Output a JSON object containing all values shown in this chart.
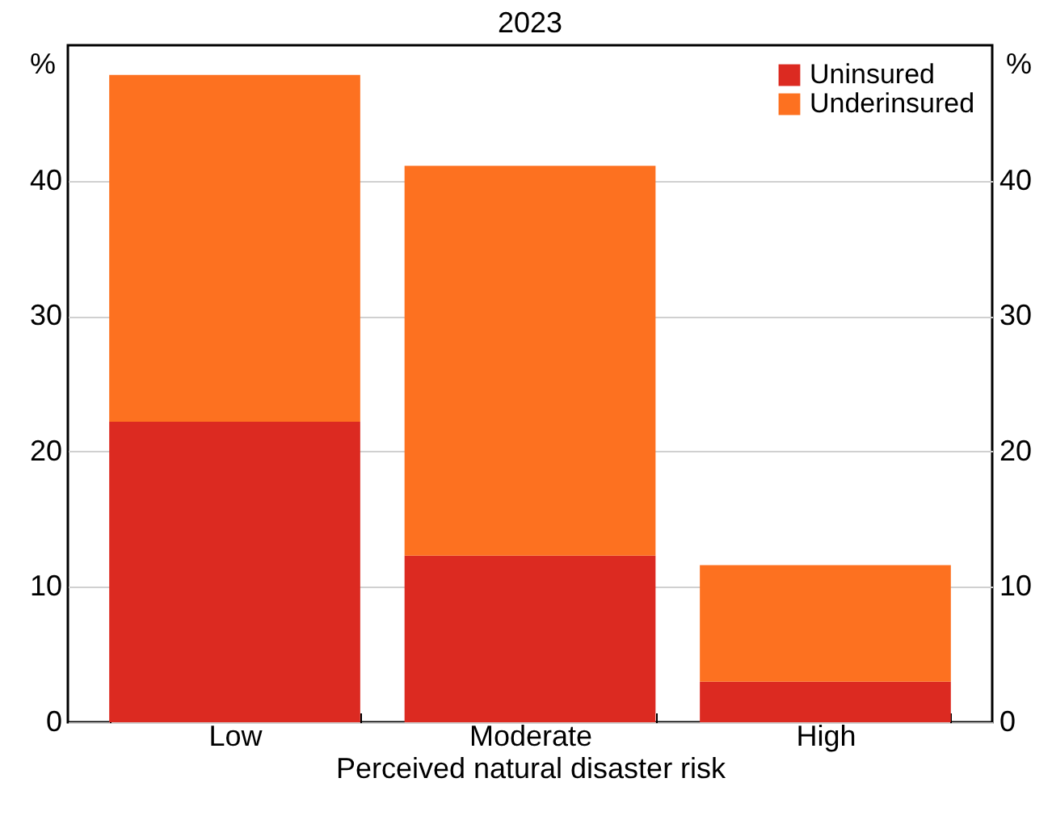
{
  "chart_data": {
    "type": "bar",
    "subtitle": "2023",
    "xlabel": "Perceived natural disaster risk",
    "ylabel": "%",
    "y2label": "%",
    "categories": [
      "Low",
      "Moderate",
      "High"
    ],
    "stacked": true,
    "series": [
      {
        "name": "Uninsured",
        "color": "#dc2a21",
        "values": [
          22.2,
          12.3,
          3.0
        ]
      },
      {
        "name": "Underinsured",
        "color": "#fd7120",
        "values": [
          25.6,
          28.8,
          8.6
        ]
      }
    ],
    "ylim": [
      0,
      50
    ],
    "yticks": [
      0,
      10,
      20,
      30,
      40
    ],
    "y2lim": [
      0,
      50
    ],
    "y2ticks": [
      0,
      10,
      20,
      30,
      40
    ],
    "grid": "y",
    "legend": "top right"
  }
}
